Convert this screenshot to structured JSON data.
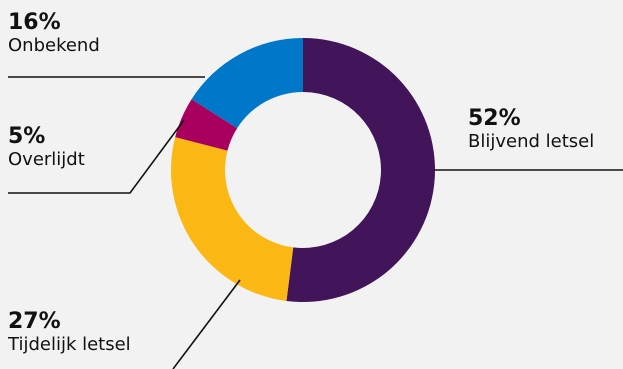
{
  "chart_data": {
    "type": "pie",
    "subtype": "donut",
    "categories": [
      "Blijvend letsel",
      "Tijdelijk letsel",
      "Overlijdt",
      "Onbekend"
    ],
    "values": [
      52,
      27,
      5,
      16
    ],
    "value_labels": [
      "52%",
      "27%",
      "5%",
      "16%"
    ],
    "colors": [
      "#42155a",
      "#fbb714",
      "#a9005f",
      "#0077c8"
    ],
    "title": "",
    "legend": "none"
  }
}
